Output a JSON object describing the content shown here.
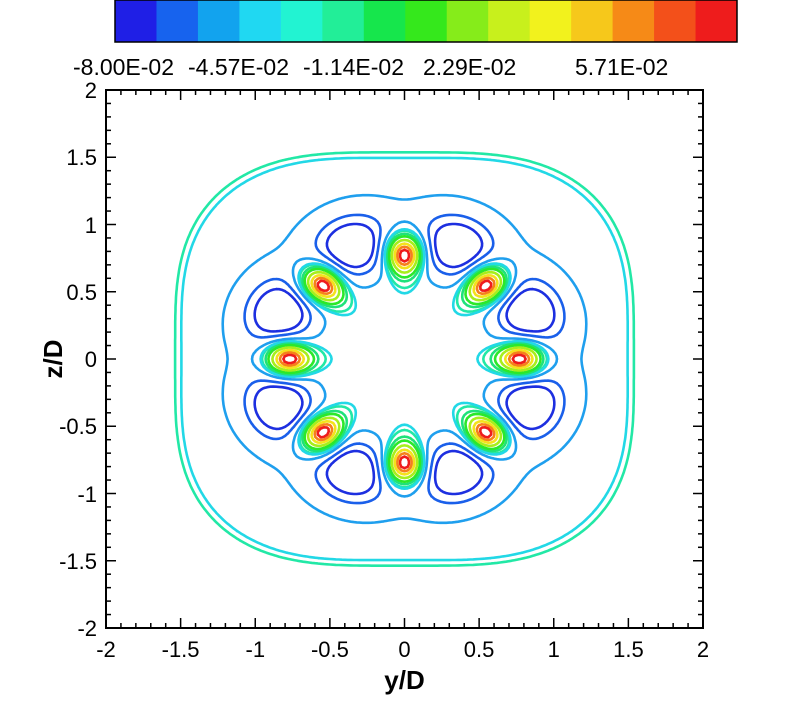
{
  "chart_data": {
    "type": "contour",
    "title": "",
    "xlabel": "y/D",
    "ylabel": "z/D",
    "xlim": [
      -2,
      2
    ],
    "ylim": [
      -2,
      2
    ],
    "x_ticks": [
      "-2",
      "-1.5",
      "-1",
      "-0.5",
      "0",
      "0.5",
      "1",
      "1.5",
      "2"
    ],
    "y_ticks": [
      "-2",
      "-1.5",
      "-1",
      "-0.5",
      "0",
      "0.5",
      "1",
      "1.5",
      "2"
    ],
    "grid": false,
    "legend": {
      "placement": "top",
      "labels": [
        "-8.00E-02",
        "-4.57E-02",
        "-1.14E-02",
        "2.29E-02",
        "5.71E-02"
      ],
      "colors": [
        "#1f1fe6",
        "#1763ee",
        "#12a3ee",
        "#20d8f2",
        "#22f3d2",
        "#22ee98",
        "#16e64c",
        "#35e81c",
        "#86ec1a",
        "#c8f01c",
        "#f2f21d",
        "#f6c81b",
        "#f68a17",
        "#f3501a",
        "#ee1c1c"
      ]
    },
    "lobes": 8,
    "contours": [
      {
        "level": 0.0005,
        "color": "#22e8a6",
        "kind": "outer"
      },
      {
        "level": -0.004,
        "color": "#22d8e6",
        "kind": "trough"
      },
      {
        "level": -0.02,
        "color": "#1f9fee",
        "kind": "trough"
      },
      {
        "level": -0.045,
        "color": "#1a5fea",
        "kind": "trough"
      },
      {
        "level": -0.065,
        "color": "#1d2fe0",
        "kind": "trough"
      },
      {
        "level": 0.012,
        "color": "#1fe27a",
        "kind": "peak"
      },
      {
        "level": 0.023,
        "color": "#2be82a",
        "kind": "peak"
      },
      {
        "level": 0.04,
        "color": "#a8ee1c",
        "kind": "peak"
      },
      {
        "level": 0.057,
        "color": "#f4e21c",
        "kind": "peak"
      },
      {
        "level": 0.07,
        "color": "#f5801a",
        "kind": "peak"
      },
      {
        "level": 0.08,
        "color": "#ee1c1c",
        "kind": "peak"
      }
    ]
  }
}
